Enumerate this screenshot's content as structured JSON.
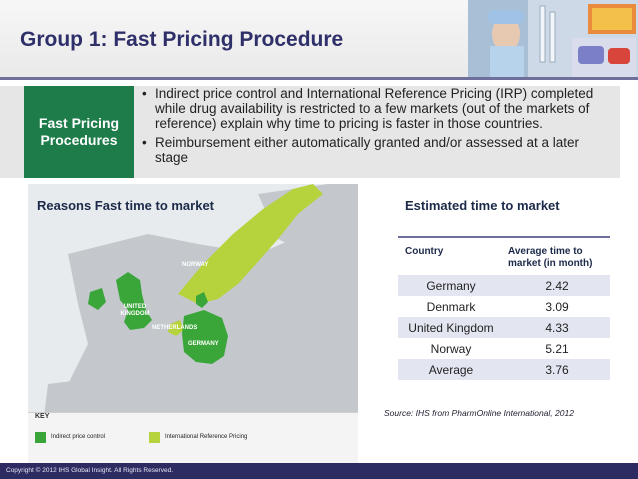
{
  "title": "Group 1: Fast Pricing Procedure",
  "fast_pricing": {
    "label": "Fast Pricing Procedures",
    "bullets": [
      "Indirect price control and International Reference Pricing (IRP) completed while drug availability is restricted to a few markets (out of the markets of reference) explain why time to pricing is faster in those countries.",
      "Reimbursement either automatically granted and/or assessed at a later stage"
    ]
  },
  "map": {
    "caption": "Reasons Fast time to market",
    "country_labels": {
      "norway": "NORWAY",
      "united_kingdom": "UNITED KINGDOM",
      "netherlands": "NETHERLANDS",
      "germany": "GERMANY"
    },
    "key": {
      "title": "KEY",
      "items": [
        {
          "label": "Indirect price control",
          "color": "#3aa63a"
        },
        {
          "label": "International Reference Pricing",
          "color": "#b6d23c"
        }
      ]
    }
  },
  "estimated": {
    "title": "Estimated time to market",
    "headers": [
      "Country",
      "Average time to market (in month)"
    ],
    "rows": [
      {
        "country": "Germany",
        "value": "2.42"
      },
      {
        "country": "Denmark",
        "value": "3.09"
      },
      {
        "country": "United Kingdom",
        "value": "4.33"
      },
      {
        "country": "Norway",
        "value": "5.21"
      },
      {
        "country": "Average",
        "value": "3.76"
      }
    ],
    "source": "Source: IHS from PharmOnline International, 2012"
  },
  "footer": "Copyright © 2012 IHS Global Insight. All Rights Reserved."
}
